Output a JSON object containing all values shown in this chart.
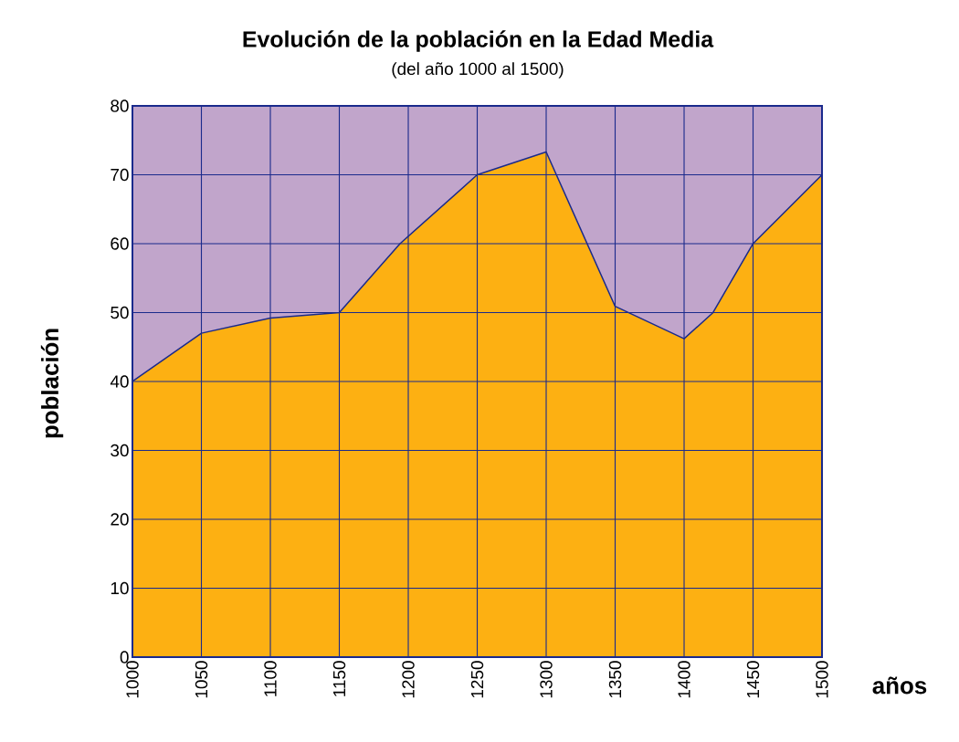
{
  "chart_data": {
    "type": "area",
    "title": "Evolución de la población en la Edad Media",
    "subtitle": "(del año 1000 al 1500)",
    "xlabel": "años",
    "ylabel": "población",
    "x": [
      1000,
      1050,
      1100,
      1150,
      1194,
      1250,
      1300,
      1350,
      1400,
      1421,
      1450,
      1500
    ],
    "series": [
      {
        "color": "#fdb012",
        "values": [
          40,
          47,
          49.2,
          50,
          60,
          70,
          73.3,
          50.9,
          46.2,
          50,
          60,
          70
        ]
      }
    ],
    "xlim": [
      1000,
      1500
    ],
    "ylim": [
      0,
      80
    ],
    "xticks": [
      1000,
      1050,
      1100,
      1150,
      1200,
      1250,
      1300,
      1350,
      1400,
      1450,
      1500
    ],
    "yticks": [
      0,
      10,
      20,
      30,
      40,
      50,
      60,
      70,
      80
    ],
    "bands": [
      {
        "axis": "y",
        "from": 40,
        "to": 80,
        "color": "#c1a5cb"
      }
    ],
    "grid": true
  }
}
